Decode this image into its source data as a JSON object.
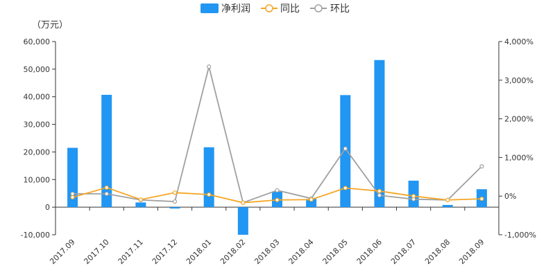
{
  "chart_data": {
    "type": "bar",
    "unit_label": "（万元）",
    "categories": [
      "2017.09",
      "2017.10",
      "2017.11",
      "2017.12",
      "2018.01",
      "2018.02",
      "2018.03",
      "2018.04",
      "2018.05",
      "2018.06",
      "2018.07",
      "2018.08",
      "2018.09"
    ],
    "series": [
      {
        "name": "净利润",
        "type": "bar",
        "axis": "left",
        "color": "#2196F3",
        "values": [
          21500,
          40700,
          1700,
          -500,
          21700,
          -10000,
          5600,
          3000,
          40600,
          53300,
          9600,
          800,
          6500
        ]
      },
      {
        "name": "同比",
        "type": "line",
        "axis": "right",
        "color": "#F5A623",
        "values": [
          -30,
          220,
          -90,
          90,
          40,
          -170,
          -100,
          -90,
          210,
          130,
          0,
          -100,
          -70
        ]
      },
      {
        "name": "环比",
        "type": "line",
        "axis": "right",
        "color": "#A0A0A0",
        "values": [
          60,
          60,
          -100,
          -140,
          3350,
          -170,
          150,
          -60,
          1230,
          20,
          -80,
          -100,
          770
        ]
      }
    ],
    "left_axis": {
      "ylim": [
        -10000,
        60000
      ],
      "ticks": [
        -10000,
        0,
        10000,
        20000,
        30000,
        40000,
        50000,
        60000
      ],
      "tick_labels": [
        "-10,000",
        "0",
        "10,000",
        "20,000",
        "30,000",
        "40,000",
        "50,000",
        "60,000"
      ]
    },
    "right_axis": {
      "ylim": [
        -1000,
        4000
      ],
      "ticks": [
        -1000,
        0,
        1000,
        2000,
        3000,
        4000
      ],
      "tick_labels": [
        "-1,000%",
        "0%",
        "1,000%",
        "2,000%",
        "3,000%",
        "4,000%"
      ]
    },
    "legend_position": "top-center",
    "grid": false
  }
}
